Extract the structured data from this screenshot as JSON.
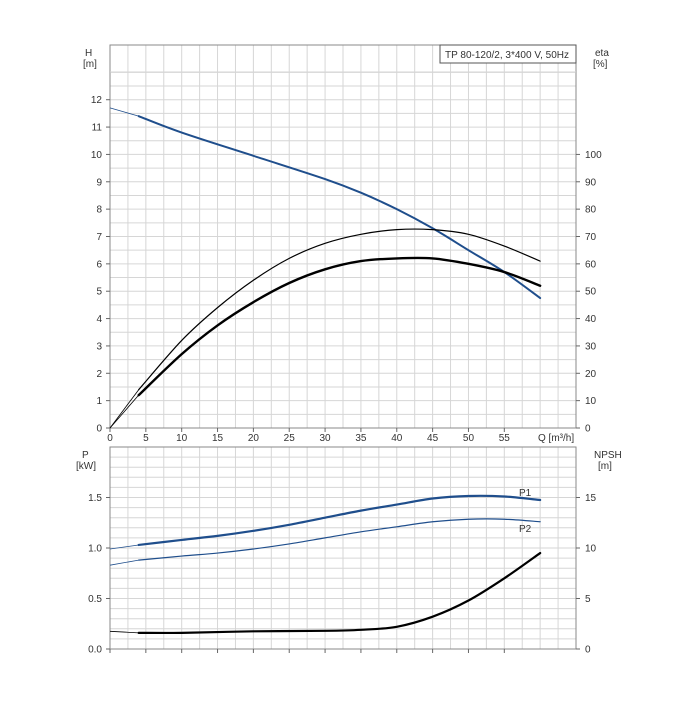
{
  "colors": {
    "blue": "#1f4e8c",
    "black": "#000000",
    "grid": "#d6d6d6",
    "frame": "#8a8a8a"
  },
  "chart_data": [
    {
      "type": "line",
      "title": "TP 80-120/2, 3*400 V, 50Hz",
      "xlabel": "Q [m³/h]",
      "ylabel_unit": "[m]",
      "ylabel": "H",
      "y2label": "eta",
      "y2label_unit": "[%]",
      "xlim": [
        0,
        65
      ],
      "ylim": [
        0,
        14
      ],
      "y2lim": [
        0,
        140
      ],
      "x_ticks": [
        0,
        5,
        10,
        15,
        20,
        25,
        30,
        35,
        40,
        45,
        50,
        55
      ],
      "y_ticks": [
        0,
        1,
        2,
        3,
        4,
        5,
        6,
        7,
        8,
        9,
        10,
        11,
        12
      ],
      "y2_ticks": [
        0,
        10,
        20,
        30,
        40,
        50,
        60,
        70,
        80,
        90,
        100
      ],
      "grid": true,
      "series": [
        {
          "color": "#1f4e8c",
          "x": [
            0,
            4,
            10,
            20,
            30,
            35,
            40,
            45,
            50,
            55,
            60
          ],
          "y": [
            11.7,
            11.4,
            10.8,
            9.95,
            9.1,
            8.6,
            8.0,
            7.3,
            6.5,
            5.7,
            4.75
          ]
        },
        {
          "color": "#000000",
          "axis": "right",
          "x": [
            0,
            4,
            10,
            15,
            20,
            25,
            30,
            35,
            40,
            45,
            50,
            55,
            60
          ],
          "y": [
            0,
            14,
            32,
            44,
            54,
            62,
            67.5,
            70.8,
            72.5,
            72.5,
            70.8,
            66.5,
            61
          ]
        },
        {
          "color": "#000000",
          "x": [
            0,
            4,
            10,
            15,
            20,
            25,
            30,
            35,
            40,
            45,
            50,
            55,
            60
          ],
          "y": [
            0,
            1.2,
            2.7,
            3.75,
            4.6,
            5.3,
            5.8,
            6.1,
            6.2,
            6.2,
            6.0,
            5.7,
            5.2
          ]
        }
      ]
    },
    {
      "type": "line",
      "ylabel": "P",
      "ylabel_unit": "[kW]",
      "y2label": "NPSH",
      "y2label_unit": "[m]",
      "xlim": [
        0,
        65
      ],
      "ylim": [
        0,
        2.0
      ],
      "y2lim": [
        0,
        20
      ],
      "y_ticks": [
        "0.0",
        "0.5",
        "1.0",
        "1.5"
      ],
      "y2_ticks": [
        "0",
        "5",
        "10",
        "15"
      ],
      "x_ticks": [
        0,
        5,
        10,
        15,
        20,
        25,
        30,
        35,
        40,
        45,
        50,
        55
      ],
      "grid": true,
      "series": [
        {
          "name": "P1",
          "color": "#1f4e8c",
          "x": [
            0,
            4,
            10,
            15,
            20,
            25,
            30,
            35,
            40,
            45,
            50,
            55,
            60
          ],
          "y": [
            0.99,
            1.03,
            1.08,
            1.12,
            1.17,
            1.23,
            1.3,
            1.37,
            1.43,
            1.49,
            1.515,
            1.51,
            1.475
          ]
        },
        {
          "name": "P2",
          "color": "#1f4e8c",
          "x": [
            0,
            4,
            10,
            15,
            20,
            25,
            30,
            35,
            40,
            45,
            50,
            55,
            60
          ],
          "y": [
            0.83,
            0.88,
            0.92,
            0.95,
            0.99,
            1.04,
            1.1,
            1.16,
            1.21,
            1.26,
            1.285,
            1.285,
            1.26
          ]
        },
        {
          "color": "#000000",
          "axis": "right",
          "x": [
            0,
            4,
            10,
            20,
            30,
            35,
            40,
            45,
            50,
            55,
            60
          ],
          "y": [
            1.75,
            1.6,
            1.6,
            1.75,
            1.8,
            1.9,
            2.2,
            3.2,
            4.8,
            7.0,
            9.5
          ]
        }
      ]
    }
  ]
}
